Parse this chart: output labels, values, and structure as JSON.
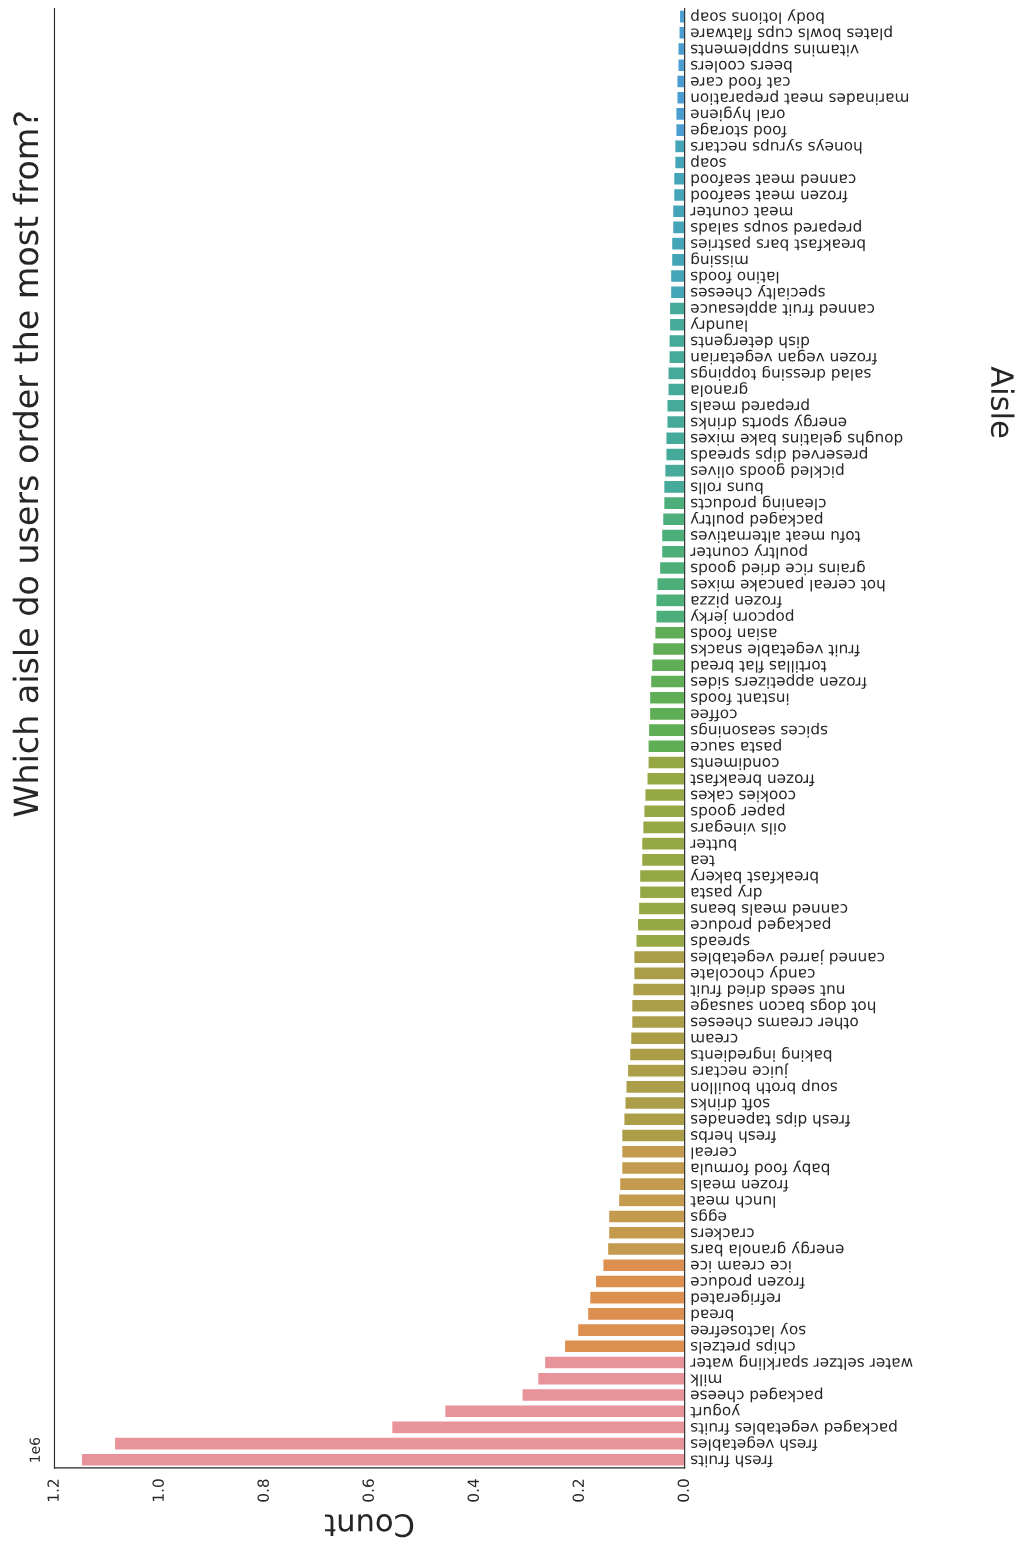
{
  "chart_data": {
    "type": "bar",
    "orientation": "horizontal",
    "title": "Which aisle do users order the most from?",
    "xlabel": "Count",
    "ylabel": "Aisle",
    "annotations": [
      "1e6"
    ],
    "categories": [
      "body lotions soap",
      "plates bowls cups flatware",
      "vitamins supplements",
      "beers coolers",
      "cat food care",
      "marinades meat preparation",
      "oral hygiene",
      "food storage",
      "honeys syrups nectars",
      "soap",
      "canned meat seafood",
      "frozen meat seafood",
      "meat counter",
      "prepared soups salads",
      "breakfast bars pastries",
      "missing",
      "latino foods",
      "specialty cheeses",
      "canned fruit applesauce",
      "laundry",
      "dish detergents",
      "frozen vegan vegetarian",
      "salad dressing toppings",
      "granola",
      "prepared meals",
      "energy sports drinks",
      "doughs gelatins bake mixes",
      "preserved dips spreads",
      "pickled goods olives",
      "buns rolls",
      "cleaning products",
      "packaged poultry",
      "tofu meat alternatives",
      "poultry counter",
      "grains rice dried goods",
      "hot cereal pancake mixes",
      "frozen pizza",
      "popcorn jerky",
      "asian foods",
      "fruit vegetable snacks",
      "tortillas flat bread",
      "frozen appetizers sides",
      "instant foods",
      "coffee",
      "spices seasonings",
      "pasta sauce",
      "condiments",
      "frozen breakfast",
      "cookies cakes",
      "paper goods",
      "oils vinegars",
      "butter",
      "tea",
      "breakfast bakery",
      "dry pasta",
      "canned meals beans",
      "packaged produce",
      "spreads",
      "canned jarred vegetables",
      "candy chocolate",
      "nut seeds dried fruit",
      "hot dogs bacon sausage",
      "other creams cheeses",
      "cream",
      "baking ingredients",
      "juice nectars",
      "soup broth bouillon",
      "soft drinks",
      "fresh dips tapenades",
      "fresh herbs",
      "cereal",
      "baby food formula",
      "frozen meals",
      "lunch meat",
      "eggs",
      "crackers",
      "energy granola bars",
      "ice cream ice",
      "frozen produce",
      "refrigerated",
      "bread",
      "soy lactosefree",
      "chips pretzels",
      "water seltzer sparkling water",
      "milk",
      "packaged cheese",
      "yogurt",
      "packaged vegetables fruits",
      "fresh vegetables",
      "fresh fruits"
    ],
    "values": [
      0.01,
      0.011,
      0.013,
      0.013,
      0.015,
      0.015,
      0.017,
      0.017,
      0.019,
      0.019,
      0.021,
      0.021,
      0.023,
      0.023,
      0.025,
      0.025,
      0.027,
      0.027,
      0.029,
      0.029,
      0.03,
      0.03,
      0.032,
      0.032,
      0.034,
      0.034,
      0.036,
      0.036,
      0.038,
      0.04,
      0.04,
      0.042,
      0.044,
      0.044,
      0.048,
      0.053,
      0.055,
      0.055,
      0.057,
      0.061,
      0.063,
      0.065,
      0.067,
      0.067,
      0.069,
      0.07,
      0.07,
      0.072,
      0.076,
      0.078,
      0.08,
      0.082,
      0.082,
      0.086,
      0.086,
      0.088,
      0.09,
      0.093,
      0.097,
      0.097,
      0.099,
      0.101,
      0.101,
      0.103,
      0.105,
      0.109,
      0.112,
      0.114,
      0.116,
      0.12,
      0.12,
      0.12,
      0.124,
      0.126,
      0.145,
      0.145,
      0.147,
      0.156,
      0.17,
      0.181,
      0.185,
      0.204,
      0.229,
      0.267,
      0.28,
      0.31,
      0.457,
      0.558,
      1.086,
      1.149
    ],
    "colors": [
      "#4a9dd0",
      "#4a9dd0",
      "#4a9dd0",
      "#4a9dd0",
      "#4a9dd0",
      "#4a9dd0",
      "#4a9dd0",
      "#4a9dd0",
      "#44a4b8",
      "#44a4b8",
      "#44a4b8",
      "#44a4b8",
      "#44a4b8",
      "#44a4b8",
      "#44a4b8",
      "#44a4b8",
      "#44a4b8",
      "#44a4b8",
      "#45aa9a",
      "#45aa9a",
      "#45aa9a",
      "#45aa9a",
      "#45aa9a",
      "#45aa9a",
      "#45aa9a",
      "#45aa9a",
      "#45aa9a",
      "#45aa9a",
      "#45aa9a",
      "#45aa9a",
      "#4caf7a",
      "#4caf7a",
      "#4caf7a",
      "#4caf7a",
      "#4caf7a",
      "#4caf7a",
      "#4caf7a",
      "#4caf7a",
      "#5fae55",
      "#5fae55",
      "#5fae55",
      "#5fae55",
      "#5fae55",
      "#5fae55",
      "#5fae55",
      "#5fae55",
      "#96a845",
      "#96a845",
      "#96a845",
      "#96a845",
      "#96a845",
      "#96a845",
      "#96a845",
      "#96a845",
      "#96a845",
      "#96a845",
      "#96a845",
      "#96a845",
      "#ac9e48",
      "#ac9e48",
      "#ac9e48",
      "#ac9e48",
      "#ac9e48",
      "#ac9e48",
      "#ac9e48",
      "#ac9e48",
      "#ac9e48",
      "#ac9e48",
      "#ac9e48",
      "#ac9e48",
      "#c49a4f",
      "#c49a4f",
      "#c49a4f",
      "#c49a4f",
      "#c49a4f",
      "#c49a4f",
      "#c49a4f",
      "#dd8f4f",
      "#dd8f4f",
      "#dd8f4f",
      "#dd8f4f",
      "#dd8f4f",
      "#dd8f4f",
      "#e8939a",
      "#e8939a",
      "#e8939a",
      "#e8939a",
      "#e8939a",
      "#e8939a",
      "#e8939a"
    ],
    "xlim": [
      1.2,
      0
    ],
    "xticks": [
      {
        "value": 0,
        "label": "0.0"
      },
      0.2,
      0.4,
      0.6,
      0.8,
      {
        "value": 1,
        "label": "1.0"
      },
      1.2
    ],
    "grid": false,
    "legend": false
  }
}
